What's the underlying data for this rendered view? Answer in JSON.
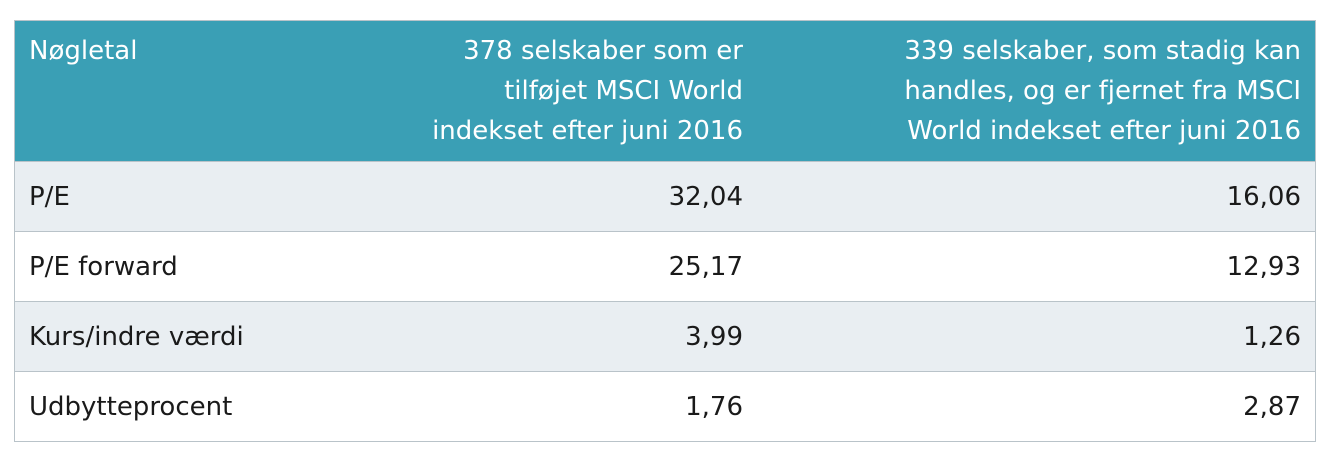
{
  "table": {
    "header": {
      "key": "Nøgletal",
      "col1": [
        "378 selskaber som er",
        "tilføjet MSCI World",
        "indekset efter juni 2016"
      ],
      "col2": [
        "339 selskaber, som stadig kan",
        "handles, og er fjernet fra MSCI",
        "World indekset efter juni 2016"
      ]
    },
    "rows": [
      [
        "P/E",
        "32,04",
        "16,06"
      ],
      [
        "P/E forward",
        "25,17",
        "12,93"
      ],
      [
        "Kurs/indre værdi",
        "3,99",
        "1,26"
      ],
      [
        "Udbytteprocent",
        "1,76",
        "2,87"
      ]
    ]
  }
}
